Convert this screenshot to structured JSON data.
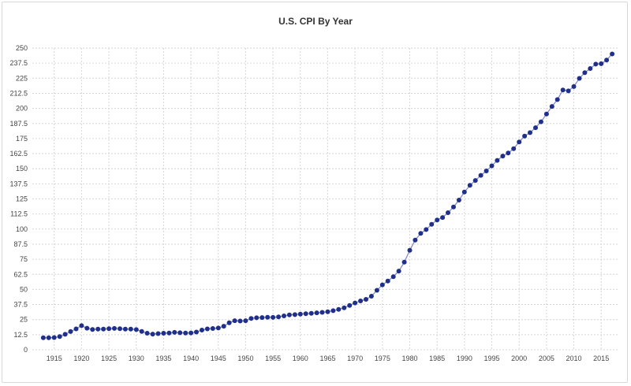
{
  "chart_data": {
    "type": "line",
    "title": "U.S. CPI By Year",
    "xlabel": "",
    "ylabel": "",
    "xlim": [
      1911,
      2018
    ],
    "ylim": [
      0,
      250
    ],
    "grid": true,
    "y_ticks": [
      "0",
      "12.5",
      "25",
      "37.5",
      "50",
      "62.5",
      "75",
      "87.5",
      "100",
      "112.5",
      "125",
      "137.5",
      "150",
      "162.5",
      "175",
      "187.5",
      "200",
      "212.5",
      "225",
      "237.5",
      "250"
    ],
    "x_ticks": [
      "1915",
      "1920",
      "1925",
      "1930",
      "1935",
      "1940",
      "1945",
      "1950",
      "1955",
      "1960",
      "1965",
      "1970",
      "1975",
      "1980",
      "1985",
      "1990",
      "1995",
      "2000",
      "2005",
      "2010",
      "2015"
    ],
    "colors": {
      "line": "#7b85c9",
      "marker": "#1f2f8a"
    },
    "series": [
      {
        "x": [
          1913,
          1914,
          1915,
          1916,
          1917,
          1918,
          1919,
          1920,
          1921,
          1922,
          1923,
          1924,
          1925,
          1926,
          1927,
          1928,
          1929,
          1930,
          1931,
          1932,
          1933,
          1934,
          1935,
          1936,
          1937,
          1938,
          1939,
          1940,
          1941,
          1942,
          1943,
          1944,
          1945,
          1946,
          1947,
          1948,
          1949,
          1950,
          1951,
          1952,
          1953,
          1954,
          1955,
          1956,
          1957,
          1958,
          1959,
          1960,
          1961,
          1962,
          1963,
          1964,
          1965,
          1966,
          1967,
          1968,
          1969,
          1970,
          1971,
          1972,
          1973,
          1974,
          1975,
          1976,
          1977,
          1978,
          1979,
          1980,
          1981,
          1982,
          1983,
          1984,
          1985,
          1986,
          1987,
          1988,
          1989,
          1990,
          1991,
          1992,
          1993,
          1994,
          1995,
          1996,
          1997,
          1998,
          1999,
          2000,
          2001,
          2002,
          2003,
          2004,
          2005,
          2006,
          2007,
          2008,
          2009,
          2010,
          2011,
          2012,
          2013,
          2014,
          2015,
          2016,
          2017
        ],
        "values": [
          9.9,
          10.0,
          10.1,
          10.9,
          12.8,
          15.1,
          17.3,
          20.0,
          17.9,
          16.8,
          17.1,
          17.1,
          17.5,
          17.7,
          17.4,
          17.1,
          17.1,
          16.7,
          15.2,
          13.7,
          13.0,
          13.4,
          13.7,
          13.9,
          14.4,
          14.1,
          13.9,
          14.0,
          14.7,
          16.3,
          17.3,
          17.6,
          18.0,
          19.5,
          22.3,
          24.1,
          23.8,
          24.1,
          26.0,
          26.5,
          26.7,
          26.9,
          26.8,
          27.2,
          28.1,
          28.9,
          29.1,
          29.6,
          29.9,
          30.2,
          30.6,
          31.0,
          31.5,
          32.4,
          33.4,
          34.8,
          36.7,
          38.8,
          40.5,
          41.8,
          44.4,
          49.3,
          53.8,
          56.9,
          60.6,
          65.2,
          72.6,
          82.4,
          90.9,
          96.5,
          99.6,
          103.9,
          107.6,
          109.6,
          113.6,
          118.3,
          124.0,
          130.7,
          136.2,
          140.3,
          144.5,
          148.2,
          152.4,
          156.9,
          160.5,
          163.0,
          166.6,
          172.2,
          177.1,
          179.9,
          184.0,
          188.9,
          195.3,
          201.6,
          207.3,
          215.3,
          214.5,
          218.1,
          224.9,
          229.6,
          233.0,
          236.7,
          237.0,
          240.0,
          245.1
        ]
      }
    ]
  }
}
